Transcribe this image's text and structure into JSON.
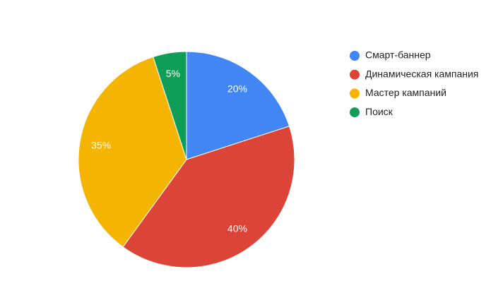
{
  "chart_data": {
    "type": "pie",
    "categories": [
      "Смарт-баннер",
      "Динамическая кампания",
      "Мастер кампаний",
      "Поиск"
    ],
    "values": [
      20,
      40,
      35,
      5
    ],
    "value_labels": [
      "20%",
      "40%",
      "35%",
      "5%"
    ],
    "colors": [
      "#4285f4",
      "#db4437",
      "#f4b400",
      "#0f9d58"
    ],
    "legend": "right"
  }
}
